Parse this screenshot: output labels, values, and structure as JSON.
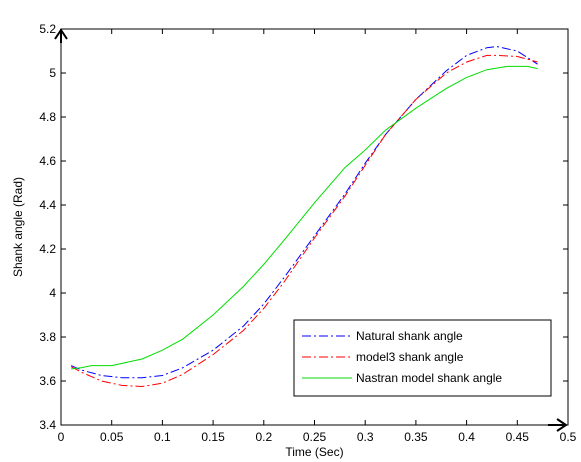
{
  "chart_data": {
    "type": "line",
    "title": "",
    "xlabel": "Time (Sec)",
    "ylabel": "Shank angle (Rad)",
    "xlim": [
      0,
      0.5
    ],
    "ylim": [
      3.4,
      5.2
    ],
    "xticks": [
      0,
      0.05,
      0.1,
      0.15,
      0.2,
      0.25,
      0.3,
      0.35,
      0.4,
      0.45,
      0.5
    ],
    "xtick_labels": [
      "0",
      "0.05",
      "0.1",
      "0.15",
      "0.2",
      "0.25",
      "0.3",
      "0.35",
      "0.4",
      "0.45",
      "0.5"
    ],
    "yticks": [
      3.4,
      3.6,
      3.8,
      4.0,
      4.2,
      4.4,
      4.6,
      4.8,
      5.0,
      5.2
    ],
    "ytick_labels": [
      "3.4",
      "3.6",
      "3.8",
      "4",
      "4.2",
      "4.4",
      "4.6",
      "4.8",
      "5",
      "5.2"
    ],
    "grid": false,
    "legend_position": "lower-right",
    "series": [
      {
        "name": "Natural shank angle",
        "color": "#0000ff",
        "style": "dash-dot",
        "x": [
          0.01,
          0.02,
          0.04,
          0.06,
          0.08,
          0.1,
          0.12,
          0.15,
          0.18,
          0.2,
          0.22,
          0.25,
          0.28,
          0.3,
          0.32,
          0.35,
          0.38,
          0.4,
          0.42,
          0.43,
          0.45,
          0.47
        ],
        "y": [
          3.67,
          3.65,
          3.625,
          3.615,
          3.615,
          3.625,
          3.66,
          3.74,
          3.85,
          3.95,
          4.07,
          4.26,
          4.45,
          4.59,
          4.72,
          4.88,
          5.01,
          5.08,
          5.115,
          5.12,
          5.1,
          5.04
        ]
      },
      {
        "name": "model3 shank angle",
        "color": "#ff0000",
        "style": "dash-dot",
        "x": [
          0.01,
          0.02,
          0.04,
          0.06,
          0.08,
          0.1,
          0.12,
          0.15,
          0.18,
          0.2,
          0.22,
          0.25,
          0.28,
          0.3,
          0.32,
          0.35,
          0.38,
          0.4,
          0.42,
          0.43,
          0.45,
          0.47
        ],
        "y": [
          3.665,
          3.64,
          3.6,
          3.58,
          3.575,
          3.59,
          3.63,
          3.72,
          3.83,
          3.93,
          4.05,
          4.25,
          4.44,
          4.58,
          4.72,
          4.88,
          5.0,
          5.05,
          5.08,
          5.08,
          5.075,
          5.05
        ]
      },
      {
        "name": "Nastran model shank angle",
        "color": "#00dd00",
        "style": "solid",
        "x": [
          0.01,
          0.02,
          0.03,
          0.05,
          0.08,
          0.1,
          0.12,
          0.15,
          0.18,
          0.2,
          0.22,
          0.25,
          0.28,
          0.3,
          0.32,
          0.35,
          0.38,
          0.4,
          0.42,
          0.44,
          0.46,
          0.47
        ],
        "y": [
          3.655,
          3.66,
          3.67,
          3.67,
          3.7,
          3.74,
          3.79,
          3.9,
          4.03,
          4.13,
          4.24,
          4.41,
          4.57,
          4.65,
          4.74,
          4.84,
          4.93,
          4.98,
          5.015,
          5.03,
          5.03,
          5.02
        ]
      }
    ]
  }
}
